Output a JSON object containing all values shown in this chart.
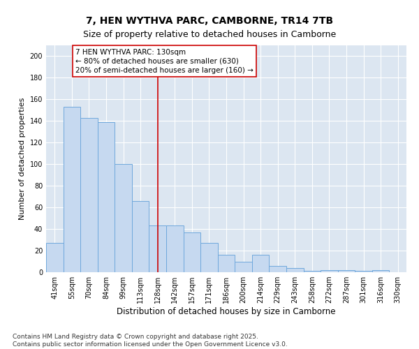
{
  "title": "7, HEN WYTHVA PARC, CAMBORNE, TR14 7TB",
  "subtitle": "Size of property relative to detached houses in Camborne",
  "xlabel": "Distribution of detached houses by size in Camborne",
  "ylabel": "Number of detached properties",
  "categories": [
    "41sqm",
    "55sqm",
    "70sqm",
    "84sqm",
    "99sqm",
    "113sqm",
    "128sqm",
    "142sqm",
    "157sqm",
    "171sqm",
    "186sqm",
    "200sqm",
    "214sqm",
    "229sqm",
    "243sqm",
    "258sqm",
    "272sqm",
    "287sqm",
    "301sqm",
    "316sqm",
    "330sqm"
  ],
  "values": [
    27,
    153,
    143,
    139,
    100,
    66,
    43,
    43,
    37,
    27,
    16,
    10,
    16,
    6,
    4,
    1,
    2,
    2,
    1,
    2,
    0
  ],
  "bar_color": "#c6d9f0",
  "bar_edge_color": "#6fa8dc",
  "vline_x_index": 6,
  "vline_color": "#cc0000",
  "annotation_text": "7 HEN WYTHVA PARC: 130sqm\n← 80% of detached houses are smaller (630)\n20% of semi-detached houses are larger (160) →",
  "annotation_box_color": "#cc0000",
  "ylim": [
    0,
    210
  ],
  "yticks": [
    0,
    20,
    40,
    60,
    80,
    100,
    120,
    140,
    160,
    180,
    200
  ],
  "background_color": "#dce6f1",
  "footer_text": "Contains HM Land Registry data © Crown copyright and database right 2025.\nContains public sector information licensed under the Open Government Licence v3.0.",
  "title_fontsize": 10,
  "subtitle_fontsize": 9,
  "xlabel_fontsize": 8.5,
  "ylabel_fontsize": 8,
  "annotation_fontsize": 7.5,
  "footer_fontsize": 6.5,
  "tick_fontsize": 7
}
